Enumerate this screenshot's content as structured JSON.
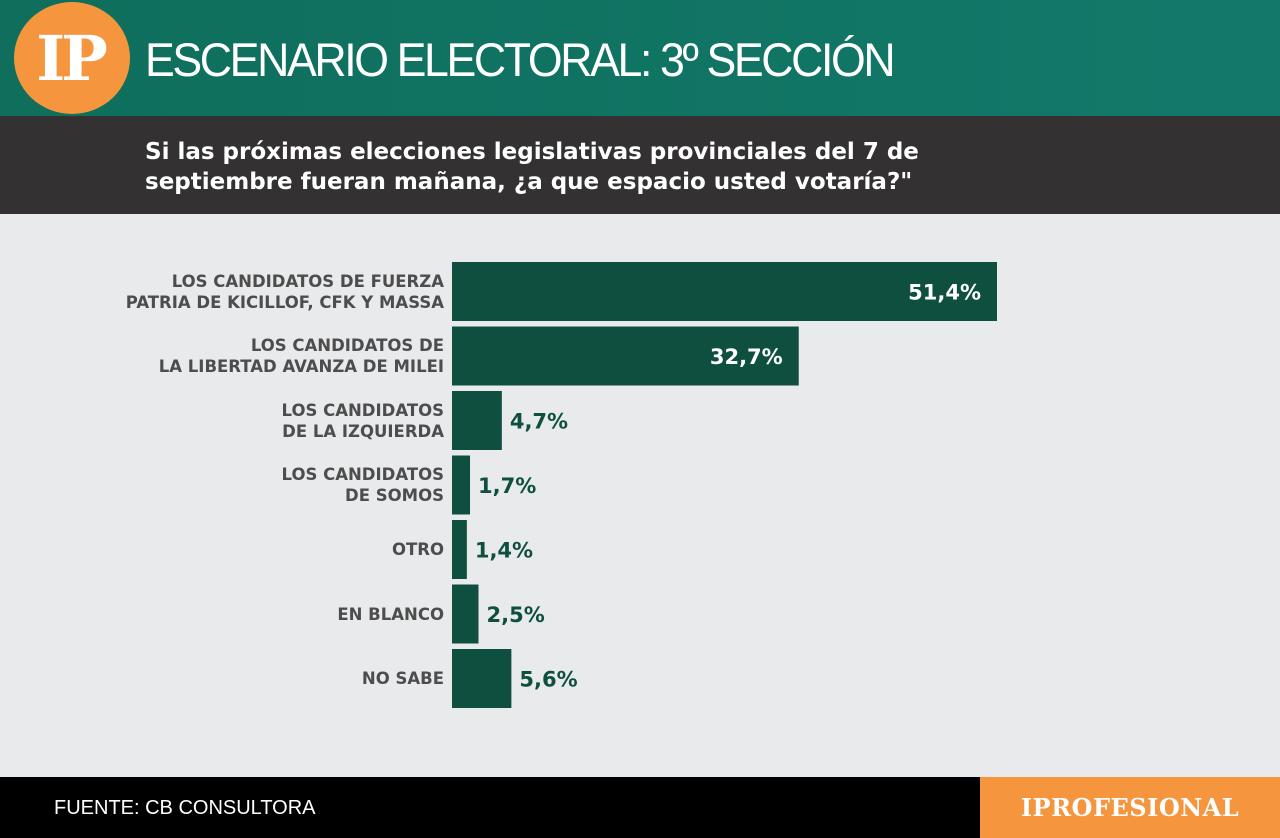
{
  "header": {
    "logo_text": "IP",
    "title": "ESCENARIO ELECTORAL: 3º SECCIÓN",
    "question": "Si las próximas elecciones legislativas provinciales del 7 de septiembre fueran mañana, ¿a que espacio usted votaría?\""
  },
  "colors": {
    "header_green": "#12796a",
    "bar_green": "#0f4f40",
    "accent_orange": "#f5953e",
    "dark_band": "#333132",
    "background": "#e9eaec"
  },
  "chart_data": {
    "type": "bar",
    "orientation": "horizontal",
    "categories": [
      "LOS CANDIDATOS DE FUERZA\nPATRIA DE KICILLOF, CFK Y MASSA",
      "LOS CANDIDATOS DE\nLA LIBERTAD AVANZA DE MILEI",
      "LOS CANDIDATOS\nDE LA IZQUIERDA",
      "LOS CANDIDATOS\nDE SOMOS",
      "OTRO",
      "EN BLANCO",
      "NO SABE"
    ],
    "values": [
      51.4,
      32.7,
      4.7,
      1.7,
      1.4,
      2.5,
      5.6
    ],
    "value_labels": [
      "51,4%",
      "32,7%",
      "4,7%",
      "1,7%",
      "1,4%",
      "2,5%",
      "5,6%"
    ],
    "unit": "%",
    "grid": false,
    "legend": "none"
  },
  "footer": {
    "source": "FUENTE: CB CONSULTORA",
    "brand": "IPROFESIONAL"
  }
}
